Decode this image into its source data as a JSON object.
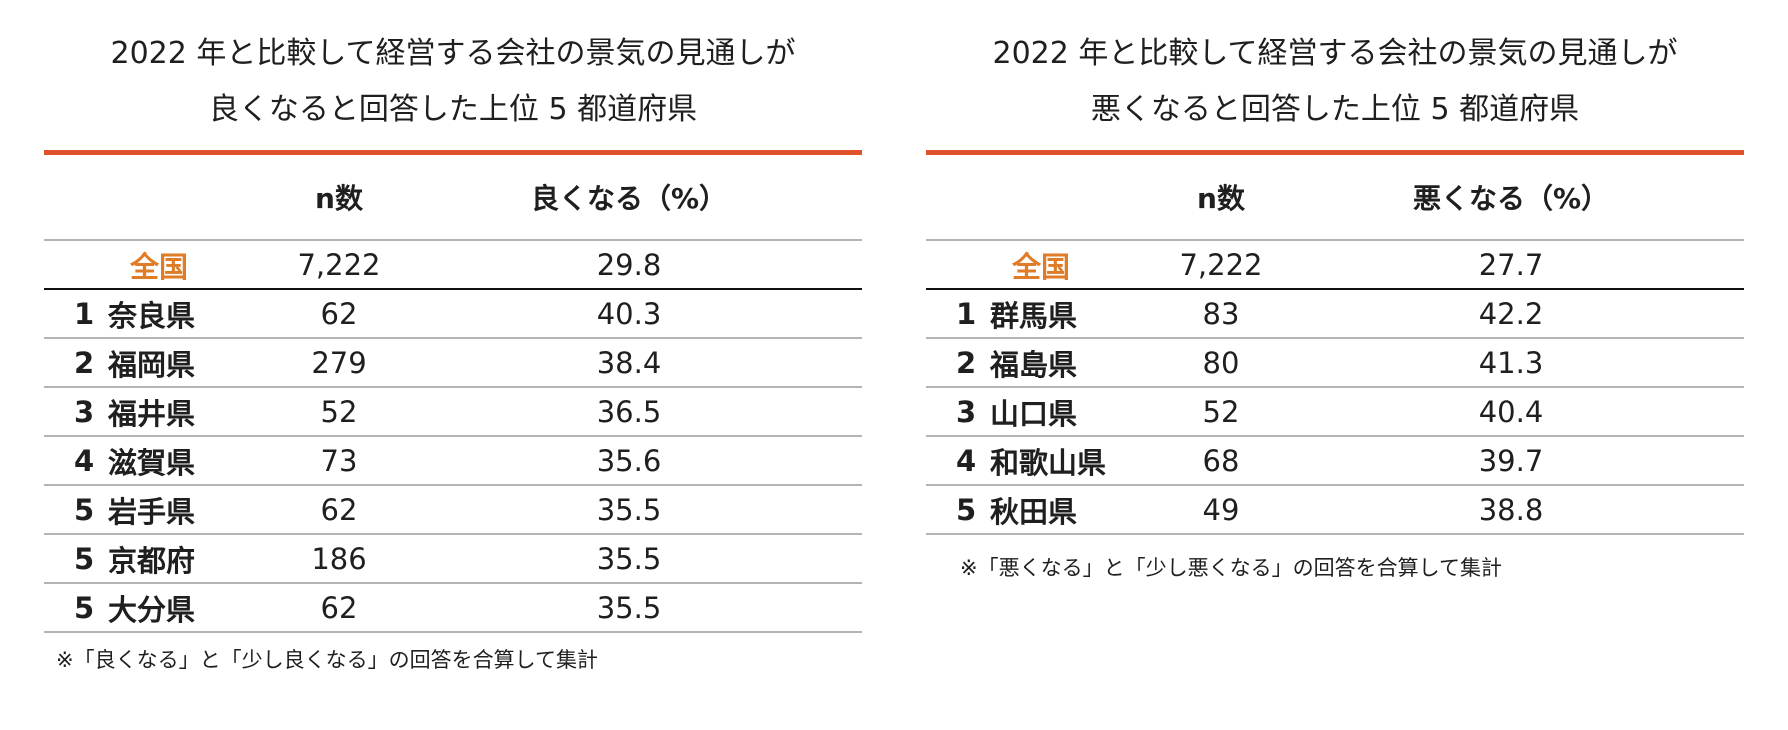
{
  "chart_data": [
    {
      "type": "table",
      "title_lines": [
        "2022 年と比較して経営する会社の景気の見通しが",
        "良くなると回答した上位 5 都道府県"
      ],
      "columns": [
        "",
        "n数",
        "良くなる（%）"
      ],
      "national": {
        "label": "全国",
        "n": "7,222",
        "value": "29.8"
      },
      "rows": [
        {
          "rank": "1",
          "name": "奈良県",
          "n": "62",
          "value": "40.3"
        },
        {
          "rank": "2",
          "name": "福岡県",
          "n": "279",
          "value": "38.4"
        },
        {
          "rank": "3",
          "name": "福井県",
          "n": "52",
          "value": "36.5"
        },
        {
          "rank": "4",
          "name": "滋賀県",
          "n": "73",
          "value": "35.6"
        },
        {
          "rank": "5",
          "name": "岩手県",
          "n": "62",
          "value": "35.5"
        },
        {
          "rank": "5",
          "name": "京都府",
          "n": "186",
          "value": "35.5"
        },
        {
          "rank": "5",
          "name": "大分県",
          "n": "62",
          "value": "35.5"
        }
      ],
      "note": "※「良くなる」と「少し良くなる」の回答を合算して集計"
    },
    {
      "type": "table",
      "title_lines": [
        "2022 年と比較して経営する会社の景気の見通しが",
        "悪くなると回答した上位 5 都道府県"
      ],
      "columns": [
        "",
        "n数",
        "悪くなる（%）"
      ],
      "national": {
        "label": "全国",
        "n": "7,222",
        "value": "27.7"
      },
      "rows": [
        {
          "rank": "1",
          "name": "群馬県",
          "n": "83",
          "value": "42.2"
        },
        {
          "rank": "2",
          "name": "福島県",
          "n": "80",
          "value": "41.3"
        },
        {
          "rank": "3",
          "name": "山口県",
          "n": "52",
          "value": "40.4"
        },
        {
          "rank": "4",
          "name": "和歌山県",
          "n": "68",
          "value": "39.7"
        },
        {
          "rank": "5",
          "name": "秋田県",
          "n": "49",
          "value": "38.8"
        }
      ],
      "note": "※「悪くなる」と「少し悪くなる」の回答を合算して集計"
    }
  ],
  "colors": {
    "accent_rule": "#e0532a",
    "national_label": "#e07b26"
  }
}
